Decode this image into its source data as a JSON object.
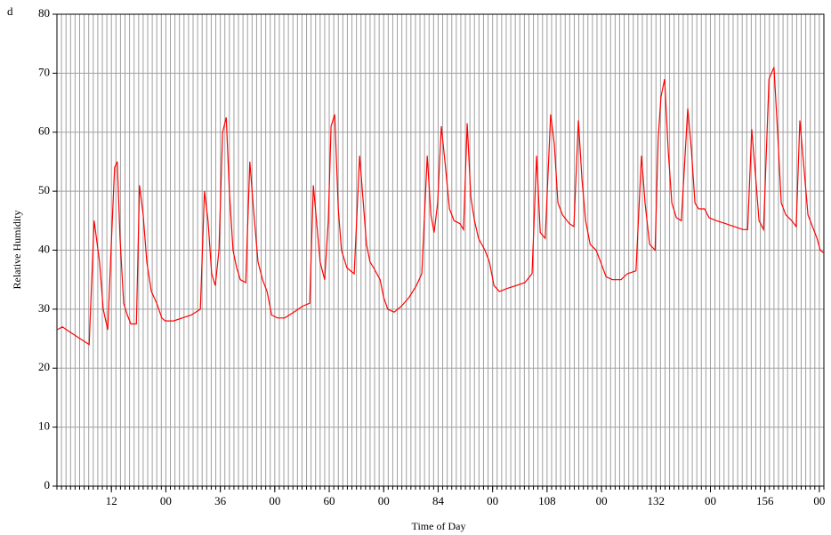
{
  "chart_data": {
    "type": "line",
    "annotation": "d",
    "xlabel": "Time of Day",
    "ylabel": "Relative Humidity",
    "color": "#ff0000",
    "grid": true,
    "xminor_step": 1,
    "xlim": [
      0,
      169
    ],
    "ylim": [
      0,
      80
    ],
    "yticks": [
      0,
      10,
      20,
      30,
      40,
      50,
      60,
      70,
      80
    ],
    "xticks": [
      12,
      {
        "value": 24,
        "label": "00"
      },
      36,
      {
        "value": 48,
        "label": "00"
      },
      60,
      {
        "value": 72,
        "label": "00"
      },
      84,
      {
        "value": 96,
        "label": "00"
      },
      108,
      {
        "value": 120,
        "label": "00"
      },
      132,
      {
        "value": 144,
        "label": "00"
      },
      156,
      {
        "value": 168,
        "label": "00"
      }
    ],
    "x": [
      0,
      1.2,
      3.1,
      6.1,
      7.1,
      8.2,
      9.4,
      10.2,
      11.2,
      12.2,
      12.7,
      13.3,
      13.9,
      14.7,
      15.5,
      16.3,
      17.5,
      18.2,
      19.0,
      19.8,
      20.8,
      22.0,
      23.1,
      23.9,
      25.7,
      27.6,
      29.6,
      31.6,
      32.5,
      33.3,
      34.1,
      34.9,
      35.7,
      36.5,
      37.3,
      38.0,
      38.8,
      39.6,
      40.4,
      41.6,
      42.5,
      43.3,
      44.3,
      45.3,
      46.3,
      47.3,
      48.6,
      50.2,
      52.2,
      54.1,
      55.7,
      56.5,
      57.3,
      58.0,
      59.0,
      59.8,
      60.4,
      61.2,
      62.0,
      62.7,
      63.9,
      65.5,
      66.7,
      67.3,
      68.2,
      69.0,
      69.8,
      71.2,
      72.0,
      72.9,
      74.3,
      75.9,
      77.6,
      79.2,
      80.4,
      81.6,
      82.4,
      83.1,
      83.9,
      84.7,
      85.5,
      86.5,
      87.5,
      88.8,
      89.6,
      90.4,
      91.2,
      92.0,
      92.9,
      94.3,
      95.3,
      96.3,
      97.5,
      99.2,
      101.2,
      103.1,
      104.7,
      105.7,
      106.5,
      107.6,
      108.8,
      109.6,
      110.4,
      111.4,
      112.9,
      113.9,
      114.9,
      115.7,
      116.5,
      117.5,
      118.8,
      119.8,
      121.0,
      122.4,
      124.3,
      125.7,
      127.6,
      128.8,
      129.6,
      130.6,
      131.8,
      132.5,
      133.1,
      133.9,
      134.7,
      135.5,
      136.5,
      137.6,
      139.0,
      139.8,
      140.6,
      141.4,
      142.7,
      143.7,
      145.3,
      147.3,
      149.2,
      151.2,
      152.2,
      153.1,
      153.9,
      154.7,
      155.7,
      156.9,
      158.0,
      158.8,
      159.6,
      160.6,
      161.9,
      162.9,
      163.7,
      164.5,
      165.5,
      166.5,
      167.5,
      168.2,
      169.0
    ],
    "values": [
      26.5,
      27,
      26,
      24.5,
      24,
      45,
      38,
      30,
      26.5,
      45,
      54,
      55,
      42,
      31,
      29,
      27.5,
      27.5,
      51,
      46,
      38,
      33,
      31,
      28.5,
      28,
      28,
      28.5,
      29,
      30,
      50,
      45,
      36,
      34,
      40,
      60,
      62.5,
      50,
      40,
      37,
      35,
      34.5,
      55,
      47,
      38,
      35,
      33,
      29,
      28.5,
      28.5,
      29.5,
      30.5,
      31,
      51,
      44,
      38,
      35,
      45,
      61,
      63,
      47,
      40,
      37,
      36,
      56,
      50,
      41,
      38,
      37,
      35,
      32,
      30,
      29.5,
      30.5,
      32,
      34,
      36,
      56,
      46,
      43,
      48,
      61,
      55,
      47,
      45,
      44.5,
      43.5,
      61.5,
      49,
      45,
      42,
      40,
      38,
      34,
      33,
      33.5,
      34,
      34.5,
      36,
      56,
      43,
      42,
      63,
      58,
      48,
      46,
      44.5,
      44,
      62,
      52,
      45,
      41,
      40,
      38,
      35.5,
      35,
      35,
      36,
      36.5,
      56,
      48,
      41,
      40,
      59,
      66,
      69,
      57,
      48,
      45.5,
      45,
      64,
      57,
      48,
      47,
      47,
      45.5,
      45,
      44.5,
      44,
      43.5,
      43.5,
      60.5,
      53,
      45,
      43.5,
      69,
      71,
      60,
      48,
      46,
      45,
      44,
      62,
      55,
      46,
      44,
      42,
      40,
      39.5
    ]
  }
}
